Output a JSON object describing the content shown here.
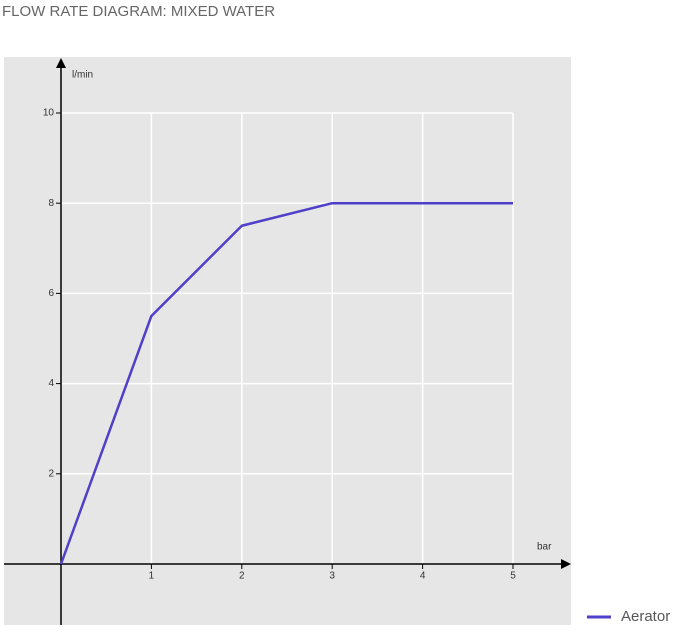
{
  "chart_data": {
    "type": "line",
    "title": "FLOW RATE DIAGRAM: MIXED WATER",
    "x_label": "bar",
    "y_label": "l/min",
    "x": [
      0,
      1,
      2,
      3,
      4,
      5
    ],
    "series": [
      {
        "name": "Aerator",
        "color": "#4f3fc9",
        "values": [
          0,
          5.5,
          7.5,
          8,
          8,
          8
        ]
      }
    ],
    "xlim": [
      0,
      5
    ],
    "ylim": [
      0,
      10
    ],
    "xticks": [
      1,
      2,
      3,
      4,
      5
    ],
    "yticks": [
      2,
      4,
      6,
      8,
      10
    ],
    "grid": true
  }
}
